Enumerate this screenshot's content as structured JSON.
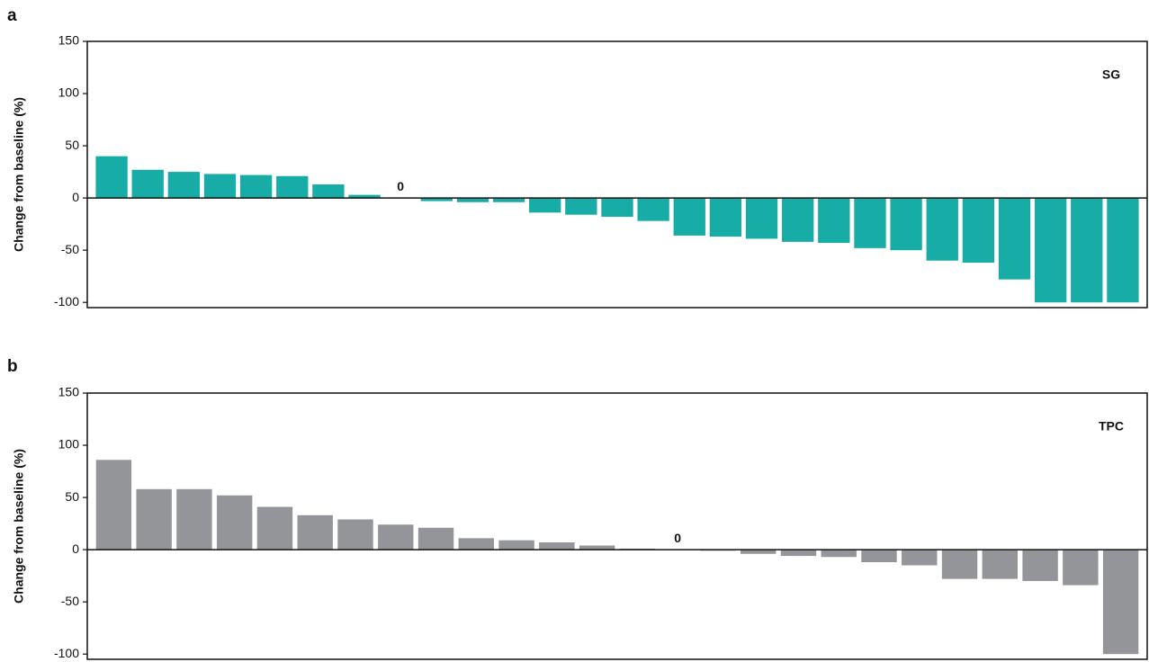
{
  "chart_data": [
    {
      "type": "bar",
      "panel_label": "a",
      "ylabel": "Change from baseline (%)",
      "ylim": [
        -105,
        150
      ],
      "yticks": [
        150,
        100,
        50,
        0,
        -50,
        -100
      ],
      "legend": "upper right",
      "series": [
        {
          "name": "SG",
          "color": "#17aca5",
          "values": [
            40,
            27,
            25,
            23,
            22,
            21,
            13,
            3,
            0,
            -3,
            -4,
            -4,
            -14,
            -16,
            -18,
            -22,
            -36,
            -37,
            -39,
            -42,
            -43,
            -48,
            -50,
            -60,
            -62,
            -78,
            -100,
            -100,
            -100
          ],
          "value_labels": [
            null,
            null,
            null,
            null,
            null,
            null,
            null,
            null,
            "0",
            null,
            null,
            null,
            null,
            null,
            null,
            null,
            null,
            null,
            null,
            null,
            null,
            null,
            null,
            null,
            null,
            null,
            null,
            null,
            null
          ]
        }
      ]
    },
    {
      "type": "bar",
      "panel_label": "b",
      "ylabel": "Change from baseline (%)",
      "ylim": [
        -105,
        150
      ],
      "yticks": [
        150,
        100,
        50,
        0,
        -50,
        -100
      ],
      "legend": "upper right",
      "series": [
        {
          "name": "TPC",
          "color": "#939598",
          "values": [
            86,
            58,
            58,
            52,
            41,
            33,
            29,
            24,
            21,
            11,
            9,
            7,
            4,
            1,
            0,
            -1,
            -4,
            -6,
            -7,
            -12,
            -15,
            -28,
            -28,
            -30,
            -34,
            -100
          ],
          "value_labels": [
            null,
            null,
            null,
            null,
            null,
            null,
            null,
            null,
            null,
            null,
            null,
            null,
            null,
            null,
            "0",
            null,
            null,
            null,
            null,
            null,
            null,
            null,
            null,
            null,
            null,
            null
          ]
        }
      ]
    }
  ]
}
